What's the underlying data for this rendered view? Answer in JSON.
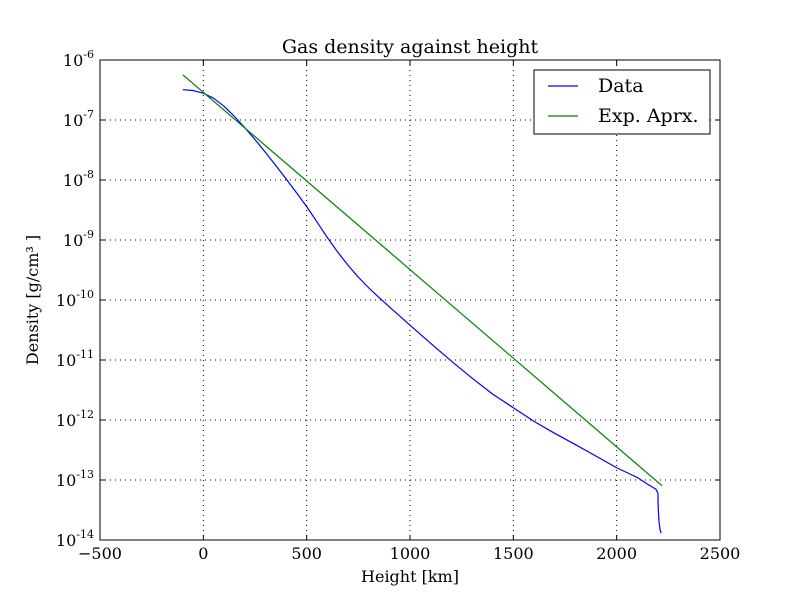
{
  "chart_data": {
    "type": "line",
    "title": "Gas density against height",
    "xlabel": "Height [km]",
    "ylabel": "Density [g/cm³ ]",
    "xlim": [
      -500,
      2500
    ],
    "ylim": [
      1e-14,
      1e-06
    ],
    "yscale": "log",
    "grid": true,
    "legend_position": "top-right",
    "x_ticks": [
      {
        "value": -500,
        "label": "−500"
      },
      {
        "value": 0,
        "label": "0"
      },
      {
        "value": 500,
        "label": "500"
      },
      {
        "value": 1000,
        "label": "1000"
      },
      {
        "value": 1500,
        "label": "1500"
      },
      {
        "value": 2000,
        "label": "2000"
      },
      {
        "value": 2500,
        "label": "2500"
      }
    ],
    "y_ticks": [
      {
        "value": 1e-14,
        "base": "10",
        "exp": "-14"
      },
      {
        "value": 1e-13,
        "base": "10",
        "exp": "-13"
      },
      {
        "value": 1e-12,
        "base": "10",
        "exp": "-12"
      },
      {
        "value": 1e-11,
        "base": "10",
        "exp": "-11"
      },
      {
        "value": 1e-10,
        "base": "10",
        "exp": "-10"
      },
      {
        "value": 1e-09,
        "base": "10",
        "exp": "-9"
      },
      {
        "value": 1e-08,
        "base": "10",
        "exp": "-8"
      },
      {
        "value": 1e-07,
        "base": "10",
        "exp": "-7"
      },
      {
        "value": 1e-06,
        "base": "10",
        "exp": "-6"
      }
    ],
    "series": [
      {
        "name": "Data",
        "color": "#0000ff",
        "points": [
          [
            -100,
            3.2e-07
          ],
          [
            -50,
            3.1e-07
          ],
          [
            0,
            2.8e-07
          ],
          [
            50,
            2.3e-07
          ],
          [
            100,
            1.7e-07
          ],
          [
            150,
            1.15e-07
          ],
          [
            200,
            7.5e-08
          ],
          [
            250,
            4.7e-08
          ],
          [
            300,
            2.9e-08
          ],
          [
            350,
            1.75e-08
          ],
          [
            400,
            1.05e-08
          ],
          [
            450,
            6.2e-09
          ],
          [
            500,
            3.6e-09
          ],
          [
            550,
            2e-09
          ],
          [
            600,
            1.1e-09
          ],
          [
            650,
            6.3e-10
          ],
          [
            700,
            3.8e-10
          ],
          [
            750,
            2.4e-10
          ],
          [
            800,
            1.6e-10
          ],
          [
            850,
            1.1e-10
          ],
          [
            900,
            7.7e-11
          ],
          [
            1000,
            3.8e-11
          ],
          [
            1100,
            1.9e-11
          ],
          [
            1200,
            9.6e-12
          ],
          [
            1300,
            5e-12
          ],
          [
            1400,
            2.7e-12
          ],
          [
            1500,
            1.6e-12
          ],
          [
            1600,
            9.5e-13
          ],
          [
            1700,
            6e-13
          ],
          [
            1800,
            3.9e-13
          ],
          [
            1900,
            2.5e-13
          ],
          [
            2000,
            1.6e-13
          ],
          [
            2100,
            1.1e-13
          ],
          [
            2150,
            8.5e-14
          ],
          [
            2190,
            7e-14
          ],
          [
            2200,
            6e-14
          ],
          [
            2200,
            4.5e-14
          ],
          [
            2202,
            3e-14
          ],
          [
            2205,
            2e-14
          ],
          [
            2210,
            1.5e-14
          ],
          [
            2215,
            1.3e-14
          ]
        ]
      },
      {
        "name": "Exp. Aprx.",
        "color": "#008000",
        "points": [
          [
            -100,
            5.7e-07
          ],
          [
            2220,
            8e-14
          ]
        ]
      }
    ]
  }
}
